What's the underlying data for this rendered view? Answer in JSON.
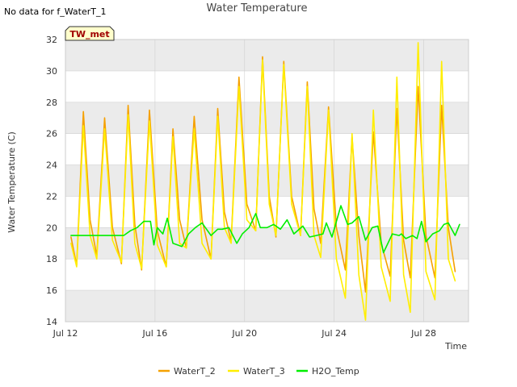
{
  "header": {
    "title": "Water Temperature",
    "no_data_note": "No data for f_WaterT_1",
    "site_badge": "TW_met"
  },
  "colors": {
    "plot_band": "#ebebeb",
    "grid": "#d0d0d0",
    "badge_fill": "#ffffcc"
  },
  "chart_data": {
    "type": "line",
    "xlabel": "Time",
    "ylabel": "Water Temperature (C)",
    "ylim": [
      14,
      32
    ],
    "yticks": [
      14,
      16,
      18,
      20,
      22,
      24,
      26,
      28,
      30,
      32
    ],
    "xlim": [
      12,
      30
    ],
    "xticks": [
      {
        "value": 12,
        "label": "Jul 12"
      },
      {
        "value": 16,
        "label": "Jul 16"
      },
      {
        "value": 20,
        "label": "Jul 20"
      },
      {
        "value": 24,
        "label": "Jul 24"
      },
      {
        "value": 28,
        "label": "Jul 28"
      }
    ],
    "legend_position": "bottom",
    "series": [
      {
        "name": "WaterT_2",
        "color": "#f5a000",
        "x": [
          12.25,
          12.5,
          12.8,
          13.1,
          13.4,
          13.75,
          14.1,
          14.5,
          14.8,
          15.1,
          15.4,
          15.75,
          16.1,
          16.5,
          16.8,
          17.1,
          17.4,
          17.75,
          18.1,
          18.5,
          18.8,
          19.1,
          19.4,
          19.75,
          20.1,
          20.5,
          20.8,
          21.1,
          21.4,
          21.75,
          22.1,
          22.5,
          22.8,
          23.1,
          23.4,
          23.75,
          24.1,
          24.5,
          24.8,
          25.1,
          25.4,
          25.75,
          26.1,
          26.5,
          26.8,
          27.1,
          27.4,
          27.75,
          28.1,
          28.5,
          28.8,
          29.1,
          29.4
        ],
        "y": [
          19.4,
          17.6,
          27.4,
          20.5,
          18.2,
          27.0,
          20.0,
          17.7,
          27.8,
          20.2,
          17.3,
          27.5,
          19.8,
          17.5,
          26.3,
          20.5,
          18.7,
          27.1,
          20.5,
          18.0,
          27.6,
          21.0,
          19.1,
          29.6,
          21.5,
          19.8,
          30.9,
          22.0,
          19.4,
          30.6,
          22.0,
          19.5,
          29.3,
          21.2,
          19.0,
          27.7,
          20.0,
          17.3,
          25.8,
          19.5,
          15.9,
          26.1,
          19.0,
          16.9,
          27.6,
          19.2,
          16.8,
          29.0,
          19.5,
          16.8,
          27.8,
          20.0,
          17.2
        ]
      },
      {
        "name": "WaterT_3",
        "color": "#ffee00",
        "x": [
          12.25,
          12.5,
          12.8,
          13.1,
          13.4,
          13.75,
          14.1,
          14.5,
          14.8,
          15.1,
          15.4,
          15.75,
          16.1,
          16.5,
          16.8,
          17.1,
          17.4,
          17.75,
          18.1,
          18.5,
          18.8,
          19.1,
          19.4,
          19.75,
          20.1,
          20.5,
          20.8,
          21.1,
          21.4,
          21.75,
          22.1,
          22.5,
          22.8,
          23.1,
          23.4,
          23.75,
          24.1,
          24.5,
          24.8,
          25.1,
          25.4,
          25.75,
          26.1,
          26.5,
          26.8,
          27.1,
          27.4,
          27.75,
          28.1,
          28.5,
          28.8,
          29.1,
          29.4
        ],
        "y": [
          19.0,
          17.5,
          26.5,
          19.5,
          18.0,
          26.3,
          19.2,
          17.8,
          27.2,
          19.0,
          17.4,
          26.8,
          18.9,
          17.5,
          25.8,
          19.0,
          18.7,
          26.3,
          19.0,
          18.0,
          27.1,
          20.0,
          19.0,
          29.0,
          20.5,
          19.8,
          30.7,
          21.5,
          19.5,
          30.4,
          21.5,
          19.5,
          29.0,
          19.5,
          18.1,
          27.5,
          18.0,
          15.5,
          26.0,
          17.0,
          14.1,
          27.5,
          17.5,
          15.3,
          29.6,
          17.0,
          14.6,
          31.8,
          17.2,
          15.4,
          30.6,
          18.0,
          16.6
        ]
      },
      {
        "name": "H2O_Temp",
        "color": "#00ee00",
        "x": [
          12.25,
          13.0,
          13.8,
          14.6,
          14.9,
          15.2,
          15.5,
          15.8,
          15.95,
          16.1,
          16.35,
          16.55,
          16.8,
          17.2,
          17.5,
          17.8,
          18.1,
          18.5,
          18.8,
          19.0,
          19.3,
          19.65,
          19.9,
          20.2,
          20.5,
          20.7,
          21.0,
          21.3,
          21.6,
          21.9,
          22.2,
          22.6,
          22.9,
          23.2,
          23.5,
          23.65,
          23.9,
          24.3,
          24.6,
          24.8,
          25.1,
          25.4,
          25.7,
          25.95,
          26.2,
          26.6,
          26.9,
          27.0,
          27.2,
          27.5,
          27.7,
          27.9,
          28.1,
          28.4,
          28.7,
          28.9,
          29.1,
          29.4,
          29.6
        ],
        "y": [
          19.5,
          19.5,
          19.5,
          19.5,
          19.8,
          20.0,
          20.4,
          20.4,
          18.9,
          20.0,
          19.6,
          20.6,
          19.0,
          18.8,
          19.6,
          20.0,
          20.3,
          19.5,
          19.9,
          19.9,
          20.0,
          19.0,
          19.6,
          20.0,
          20.9,
          20.0,
          20.0,
          20.2,
          19.9,
          20.5,
          19.6,
          20.1,
          19.4,
          19.5,
          19.6,
          20.3,
          19.4,
          21.4,
          20.2,
          20.3,
          20.7,
          19.2,
          20.0,
          20.1,
          18.4,
          19.6,
          19.5,
          19.6,
          19.3,
          19.5,
          19.3,
          20.4,
          19.1,
          19.6,
          19.8,
          20.2,
          20.3,
          19.5,
          20.2
        ]
      }
    ]
  }
}
